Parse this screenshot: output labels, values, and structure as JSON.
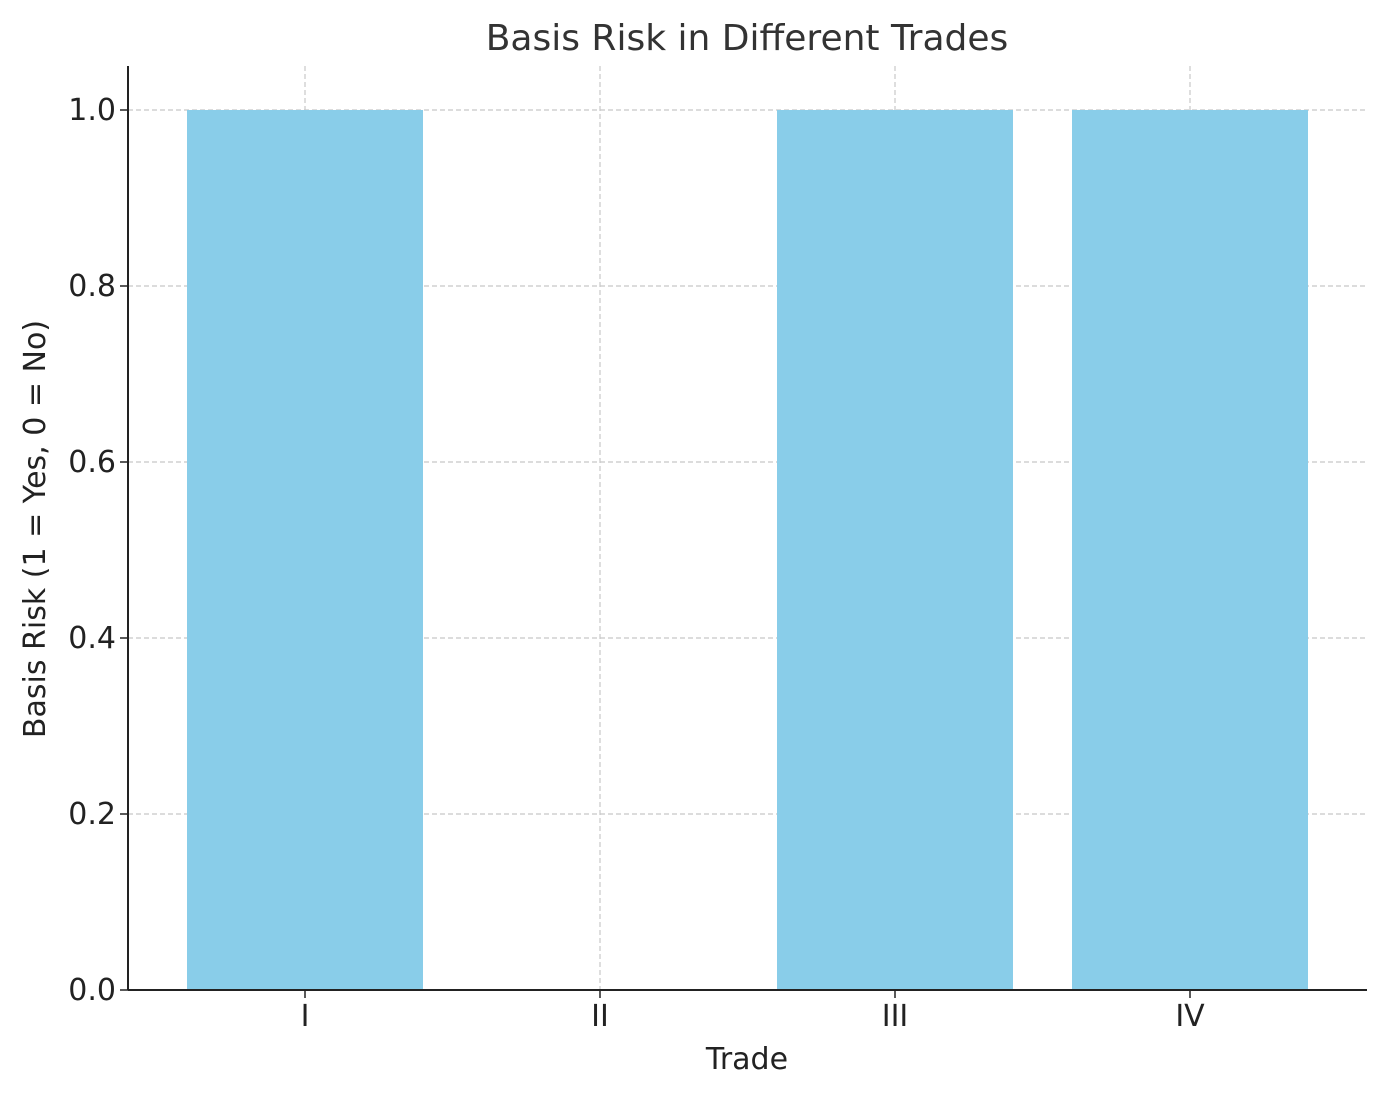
{
  "chart_data": {
    "type": "bar",
    "title": "Basis Risk in Different Trades",
    "xlabel": "Trade",
    "ylabel": "Basis Risk (1 = Yes, 0 = No)",
    "categories": [
      "I",
      "II",
      "III",
      "IV"
    ],
    "values": [
      1,
      0,
      1,
      1
    ],
    "ylim": [
      0,
      1.05
    ],
    "yticks": [
      "0.0",
      "0.2",
      "0.4",
      "0.6",
      "0.8",
      "1.0"
    ],
    "grid": true,
    "bar_color": "#89cde9",
    "grid_color": "#c8c8c8",
    "axis_color": "#222222",
    "text_color": "#333333"
  }
}
